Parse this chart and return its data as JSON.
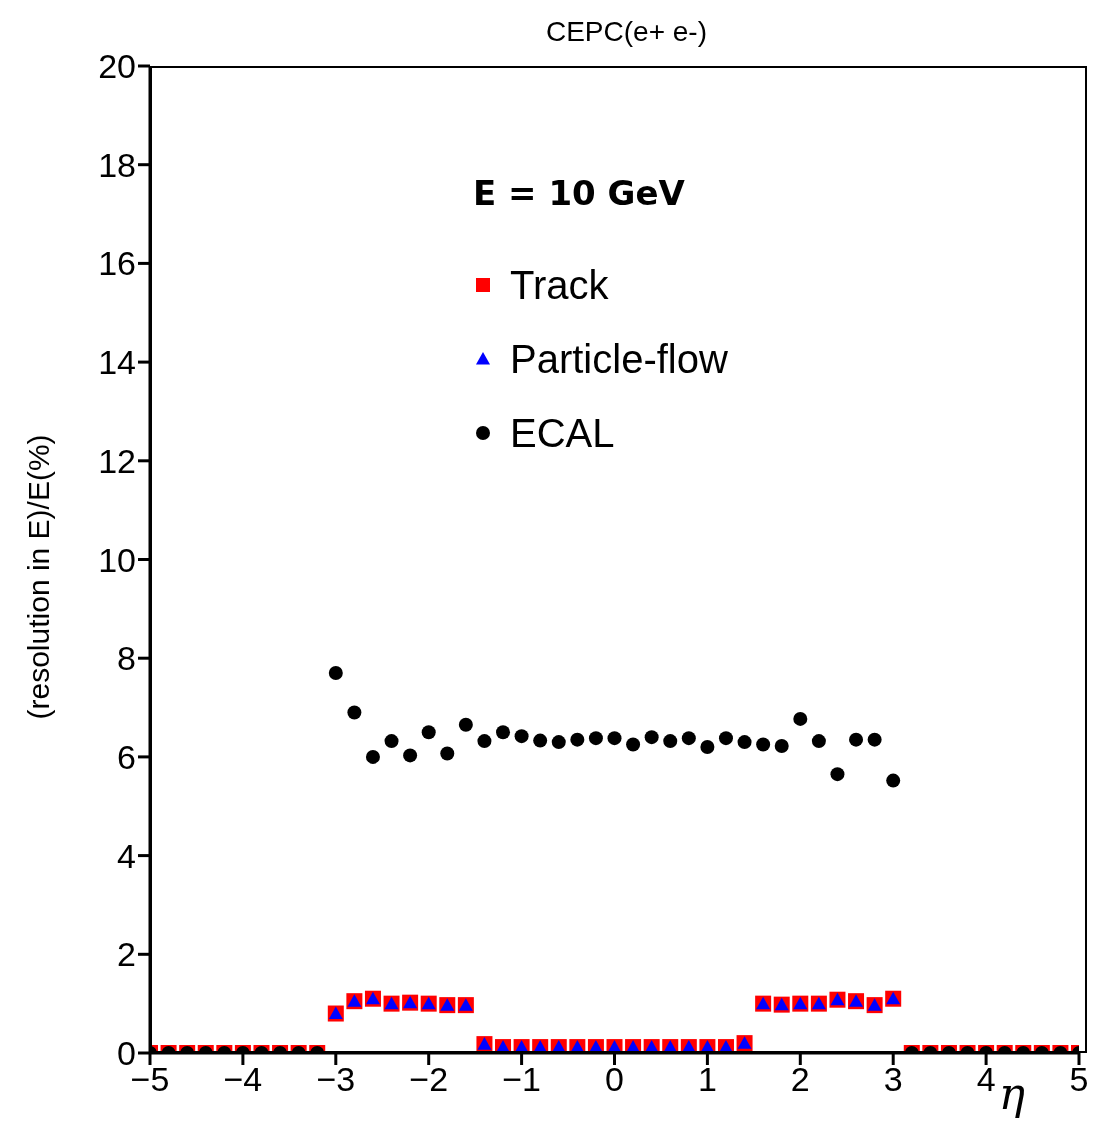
{
  "chart_data": {
    "type": "scatter",
    "title": "CEPC(e+ e-)",
    "xlabel": "η",
    "ylabel": "(resolution in E)/E(%)",
    "annotations": [
      "E = 10 GeV"
    ],
    "x": [
      -5,
      -4.8,
      -4.6,
      -4.4,
      -4.2,
      -4,
      -3.8,
      -3.6,
      -3.4,
      -3.2,
      -3,
      -2.8,
      -2.6,
      -2.4,
      -2.2,
      -2,
      -1.8,
      -1.6,
      -1.4,
      -1.2,
      -1,
      -0.8,
      -0.6,
      -0.4,
      -0.2,
      0,
      0.2,
      0.4,
      0.6,
      0.8,
      1,
      1.2,
      1.4,
      1.6,
      1.8,
      2,
      2.2,
      2.4,
      2.6,
      2.8,
      3,
      3.2,
      3.4,
      3.6,
      3.8,
      4,
      4.2,
      4.4,
      4.6,
      4.8,
      5
    ],
    "series": [
      {
        "name": "Track",
        "color": "#ff0000",
        "marker": "square",
        "values": [
          0,
          0,
          0,
          0,
          0,
          0,
          0,
          0,
          0,
          0,
          0.8,
          1.05,
          1.1,
          1.0,
          1.02,
          1.0,
          0.97,
          0.97,
          0.18,
          0.12,
          0.12,
          0.12,
          0.12,
          0.12,
          0.12,
          0.12,
          0.12,
          0.12,
          0.12,
          0.12,
          0.12,
          0.12,
          0.2,
          1.0,
          0.98,
          1.0,
          1.0,
          1.08,
          1.05,
          0.97,
          1.1,
          0,
          0,
          0,
          0,
          0,
          0,
          0,
          0,
          0,
          0
        ]
      },
      {
        "name": "Particle-flow",
        "color": "#0000ff",
        "marker": "triangle",
        "values": [
          null,
          null,
          null,
          null,
          null,
          null,
          null,
          null,
          null,
          null,
          0.8,
          1.05,
          1.1,
          1.0,
          1.02,
          1.0,
          0.97,
          0.97,
          0.18,
          0.12,
          0.12,
          0.12,
          0.12,
          0.12,
          0.12,
          0.12,
          0.12,
          0.12,
          0.12,
          0.12,
          0.12,
          0.12,
          0.2,
          1.0,
          0.98,
          1.0,
          1.0,
          1.08,
          1.05,
          0.97,
          1.1,
          null,
          null,
          null,
          null,
          null,
          null,
          null,
          null,
          null,
          null
        ]
      },
      {
        "name": "ECAL",
        "color": "#000000",
        "marker": "circle",
        "values": [
          0,
          0,
          0,
          0,
          0,
          0,
          0,
          0,
          0,
          0,
          7.7,
          6.9,
          6.0,
          6.32,
          6.03,
          6.5,
          6.07,
          6.65,
          6.32,
          6.5,
          6.42,
          6.33,
          6.3,
          6.35,
          6.38,
          6.38,
          6.25,
          6.4,
          6.32,
          6.38,
          6.2,
          6.38,
          6.3,
          6.25,
          6.22,
          6.77,
          6.32,
          5.65,
          6.35,
          6.35,
          5.52,
          0,
          0,
          0,
          0,
          0,
          0,
          0,
          0,
          0,
          0
        ]
      }
    ],
    "xlim": [
      -5,
      5
    ],
    "xticks": [
      -5,
      -4,
      -3,
      -2,
      -1,
      0,
      1,
      2,
      3,
      4,
      5
    ],
    "ylim": [
      0,
      20
    ],
    "yticks": [
      0,
      2,
      4,
      6,
      8,
      10,
      12,
      14,
      16,
      18,
      20
    ],
    "grid": false,
    "legend": "top"
  }
}
